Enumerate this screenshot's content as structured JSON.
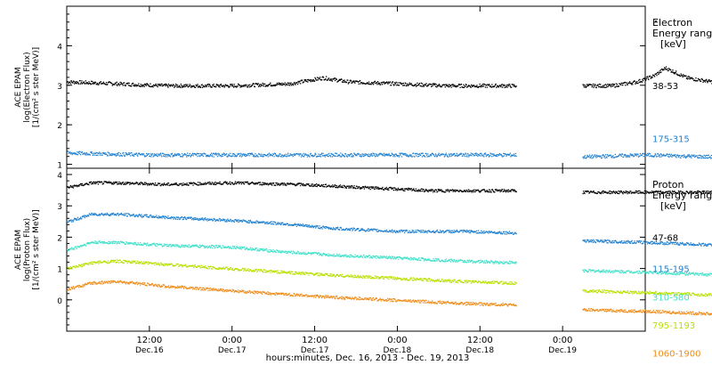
{
  "chart_data": [
    {
      "type": "scatter",
      "panel": "electron",
      "ylabel_lines": [
        "ACE EPAM",
        "log(Electron Flux)",
        "[1/(cm² s ster MeV)]"
      ],
      "ylim": [
        0.9,
        5.0
      ],
      "yticks": [
        1,
        2,
        3,
        4
      ],
      "legend_title": [
        "Electron",
        "Energy ranges",
        "[keV]"
      ],
      "series": [
        {
          "name": "38-53",
          "color": "#000000",
          "y_label_value": 3.0,
          "segments": [
            {
              "x": [
                0,
                0.3,
                0.6,
                1.0,
                1.35,
                1.55,
                1.7,
                2.0,
                2.3,
                2.6,
                2.72
              ],
              "y": [
                3.1,
                3.05,
                3.0,
                3.0,
                3.05,
                3.2,
                3.1,
                3.05,
                3.0,
                3.0,
                3.0
              ]
            },
            {
              "x": [
                3.12,
                3.3,
                3.45,
                3.55,
                3.62,
                3.75,
                3.9,
                4.1,
                4.3,
                4.5,
                4.72
              ],
              "y": [
                3.0,
                3.0,
                3.1,
                3.25,
                3.45,
                3.2,
                3.1,
                3.05,
                3.0,
                3.0,
                3.0
              ]
            }
          ]
        },
        {
          "name": "175-315",
          "color": "#2080d0",
          "y_label_value": 1.65,
          "segments": [
            {
              "x": [
                0,
                0.5,
                1.0,
                1.5,
                2.0,
                2.5,
                2.72
              ],
              "y": [
                1.3,
                1.25,
                1.25,
                1.25,
                1.25,
                1.25,
                1.25
              ]
            },
            {
              "x": [
                3.12,
                3.5,
                3.9,
                4.3,
                4.72
              ],
              "y": [
                1.2,
                1.25,
                1.2,
                1.2,
                1.2
              ]
            }
          ]
        }
      ]
    },
    {
      "type": "scatter",
      "panel": "proton",
      "ylabel_lines": [
        "ACE EPAM",
        "log(Proton Flux)",
        "[1/(cm² s ster MeV)]"
      ],
      "ylim": [
        -1.0,
        4.2
      ],
      "yticks": [
        0,
        1,
        2,
        3,
        4
      ],
      "legend_title": [
        "Proton",
        "Energy ranges",
        "[keV]"
      ],
      "series": [
        {
          "name": "47-68",
          "color": "#000000",
          "y_label_value": 2.0,
          "segments": [
            {
              "x": [
                0,
                0.15,
                0.3,
                0.6,
                1.0,
                1.4,
                1.8,
                2.2,
                2.72
              ],
              "y": [
                3.6,
                3.75,
                3.75,
                3.7,
                3.75,
                3.7,
                3.6,
                3.5,
                3.5
              ]
            },
            {
              "x": [
                3.12,
                3.5,
                4.0,
                4.5,
                4.72
              ],
              "y": [
                3.45,
                3.45,
                3.45,
                3.45,
                3.45
              ]
            }
          ]
        },
        {
          "name": "115-195",
          "color": "#2080d0",
          "y_label_value": 1.0,
          "segments": [
            {
              "x": [
                0,
                0.15,
                0.3,
                0.6,
                1.0,
                1.3,
                1.6,
                2.0,
                2.4,
                2.72
              ],
              "y": [
                2.5,
                2.75,
                2.75,
                2.65,
                2.55,
                2.45,
                2.3,
                2.2,
                2.2,
                2.15
              ]
            },
            {
              "x": [
                3.12,
                3.5,
                4.0,
                4.3,
                4.5,
                4.72
              ],
              "y": [
                1.9,
                1.85,
                1.75,
                1.75,
                1.65,
                1.6
              ]
            }
          ]
        },
        {
          "name": "310-580",
          "color": "#40e0c8",
          "y_label_value": 0.1,
          "segments": [
            {
              "x": [
                0,
                0.15,
                0.3,
                0.6,
                1.0,
                1.3,
                1.6,
                2.0,
                2.4,
                2.72
              ],
              "y": [
                1.6,
                1.85,
                1.85,
                1.75,
                1.7,
                1.55,
                1.45,
                1.35,
                1.25,
                1.2
              ]
            },
            {
              "x": [
                3.12,
                3.5,
                4.0,
                4.5,
                4.72
              ],
              "y": [
                0.95,
                0.9,
                0.8,
                0.7,
                0.65
              ]
            }
          ]
        },
        {
          "name": "795-1193",
          "color": "#b8e000",
          "y_label_value": -0.8,
          "segments": [
            {
              "x": [
                0,
                0.15,
                0.3,
                0.6,
                1.0,
                1.3,
                1.6,
                2.0,
                2.4,
                2.72
              ],
              "y": [
                1.0,
                1.2,
                1.25,
                1.15,
                1.0,
                0.9,
                0.8,
                0.7,
                0.6,
                0.55
              ]
            },
            {
              "x": [
                3.12,
                3.5,
                4.0,
                4.5,
                4.72
              ],
              "y": [
                0.3,
                0.25,
                0.15,
                0.05,
                0.0
              ]
            }
          ]
        },
        {
          "name": "1060-1900",
          "color": "#f08c18",
          "y_label_value": -1.7,
          "segments": [
            {
              "x": [
                0,
                0.15,
                0.3,
                0.6,
                1.0,
                1.3,
                1.6,
                2.0,
                2.4,
                2.72
              ],
              "y": [
                0.35,
                0.55,
                0.6,
                0.45,
                0.3,
                0.2,
                0.1,
                0.0,
                -0.1,
                -0.15
              ]
            },
            {
              "x": [
                3.12,
                3.5,
                4.0,
                4.5,
                4.72
              ],
              "y": [
                -0.3,
                -0.35,
                -0.45,
                -0.55,
                -0.6
              ]
            }
          ]
        }
      ]
    }
  ],
  "x_axis": {
    "ticks": [
      {
        "x": 0.5,
        "time": "12:00",
        "date": "Dec.16"
      },
      {
        "x": 1.0,
        "time": "0:00",
        "date": "Dec.17"
      },
      {
        "x": 1.5,
        "time": "12:00",
        "date": "Dec.17"
      },
      {
        "x": 2.0,
        "time": "0:00",
        "date": "Dec.18"
      },
      {
        "x": 2.5,
        "time": "12:00",
        "date": "Dec.18"
      },
      {
        "x": 3.0,
        "time": "0:00",
        "date": "Dec.19"
      }
    ],
    "xlabel": "hours:minutes, Dec. 16, 2013 - Dec. 19, 2013"
  }
}
